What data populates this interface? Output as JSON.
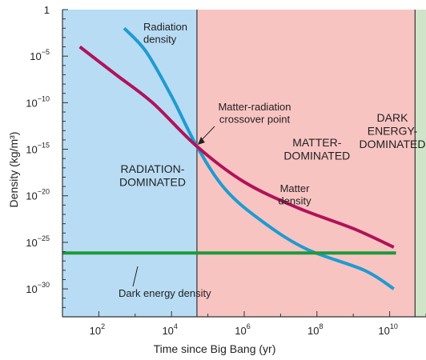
{
  "chart_data": {
    "type": "line",
    "title": "",
    "xlabel": "Time since Big Bang (yr)",
    "ylabel": "Density (kg/m³)",
    "x_scale": "log",
    "y_scale": "log",
    "xlim": [
      10,
      100000000000.0
    ],
    "ylim": [
      1e-33,
      1
    ],
    "x_ticks": [
      {
        "value": 100,
        "base": "10",
        "exp": "2"
      },
      {
        "value": 10000,
        "base": "10",
        "exp": "4"
      },
      {
        "value": 1000000,
        "base": "10",
        "exp": "6"
      },
      {
        "value": 100000000,
        "base": "10",
        "exp": "8"
      },
      {
        "value": 10000000000,
        "base": "10",
        "exp": "10"
      }
    ],
    "y_ticks": [
      {
        "value": 1,
        "base": "1",
        "exp": ""
      },
      {
        "value": 1e-05,
        "base": "10",
        "exp": "−5"
      },
      {
        "value": 1e-10,
        "base": "10",
        "exp": "−10"
      },
      {
        "value": 1e-15,
        "base": "10",
        "exp": "−15"
      },
      {
        "value": 1e-20,
        "base": "10",
        "exp": "−20"
      },
      {
        "value": 1e-25,
        "base": "10",
        "exp": "−25"
      },
      {
        "value": 1e-30,
        "base": "10",
        "exp": "−30"
      }
    ],
    "regions": [
      {
        "label_lines": [
          "RADIATION-",
          "DOMINATED"
        ],
        "x_from": 10,
        "x_to": 50000,
        "color": "#b8dcf4",
        "label_x": 3000,
        "label_y": 3e-18
      },
      {
        "label_lines": [
          "MATTER-",
          "DOMINATED"
        ],
        "x_from": 50000,
        "x_to": 50000000000,
        "color": "#f8c4c2",
        "label_x": 100000000,
        "label_y": 2e-15
      },
      {
        "label_lines": [
          "DARK",
          "ENERGY-",
          "DOMINATED"
        ],
        "x_from": 50000000000,
        "x_to": 100000000000.0,
        "color": "#cfe4c8",
        "label_x": 300000000000.0,
        "label_y": 1e-11
      }
    ],
    "series": [
      {
        "name": "Radiation density",
        "label_lines": [
          "Radiation",
          "density"
        ],
        "color": "#1f9bd1",
        "x": [
          500,
          2000,
          10000,
          50000,
          300000,
          3000000,
          50000000,
          2000000000,
          13000000000
        ],
        "y": [
          0.01,
          3e-05,
          5e-10,
          2e-15,
          5e-20,
          2e-23,
          2e-26,
          1e-28,
          1e-30
        ]
      },
      {
        "name": "Matter density",
        "label_lines": [
          "Matter",
          "density"
        ],
        "color": "#b0135a",
        "x": [
          30,
          300,
          3000,
          50000,
          1000000,
          30000000,
          1000000000,
          13000000000
        ],
        "y": [
          0.0001,
          1e-07,
          1e-10,
          2e-15,
          3e-19,
          5e-22,
          3e-24,
          3e-26
        ]
      },
      {
        "name": "Dark energy density",
        "label_lines": [
          "Dark energy density"
        ],
        "color": "#1e9a3a",
        "x": [
          10,
          15000000000
        ],
        "y": [
          7e-27,
          7e-27
        ]
      }
    ],
    "annotations": [
      {
        "label_lines": [
          "Matter-radiation",
          "crossover point"
        ],
        "x": 50000,
        "y": 2e-15
      }
    ]
  }
}
